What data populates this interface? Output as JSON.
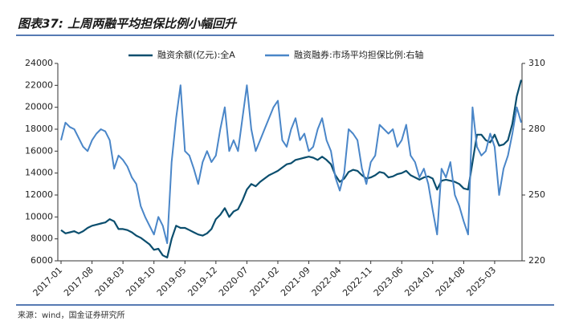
{
  "chart_data": {
    "type": "line",
    "title": "图表37: 上周两融平均担保比例小幅回升",
    "source": "来源：wind，国金证券研究所",
    "categories": [
      "2017-01",
      null,
      null,
      null,
      null,
      null,
      null,
      "2017-08",
      null,
      null,
      null,
      null,
      null,
      null,
      "2018-03",
      null,
      null,
      null,
      null,
      null,
      null,
      "2018-10",
      null,
      null,
      null,
      null,
      null,
      null,
      "2019-05",
      null,
      null,
      null,
      null,
      null,
      null,
      "2019-12",
      null,
      null,
      null,
      null,
      null,
      null,
      "2020-07",
      null,
      null,
      null,
      null,
      null,
      null,
      "2021-02",
      null,
      null,
      null,
      null,
      null,
      null,
      "2021-09",
      null,
      null,
      null,
      null,
      null,
      null,
      "2022-04",
      null,
      null,
      null,
      null,
      null,
      null,
      "2022-11",
      null,
      null,
      null,
      null,
      null,
      null,
      "2023-06",
      null,
      null,
      null,
      null,
      null,
      null,
      "2024-01",
      null,
      null,
      null,
      null,
      null,
      null,
      "2024-08",
      null,
      null,
      null,
      null,
      null,
      null,
      "2025-03",
      null,
      null,
      null,
      null,
      null,
      null
    ],
    "series": [
      {
        "name": "融资余额(亿元):全A",
        "color": "#0b4e6e",
        "axis": "y",
        "values": [
          8800,
          8500,
          8600,
          8700,
          8500,
          8700,
          9000,
          9200,
          9300,
          9400,
          9500,
          9800,
          9600,
          8900,
          8900,
          8800,
          8600,
          8300,
          8100,
          7800,
          7500,
          7000,
          7100,
          6500,
          6300,
          8000,
          9200,
          9000,
          9000,
          8800,
          8600,
          8400,
          8300,
          8500,
          8900,
          9800,
          10200,
          10800,
          10000,
          10500,
          10700,
          11500,
          12500,
          13000,
          12800,
          13200,
          13500,
          13800,
          14000,
          14200,
          14500,
          14800,
          14900,
          15200,
          15300,
          15400,
          15500,
          15400,
          15200,
          15500,
          15200,
          14800,
          13800,
          13200,
          13500,
          14100,
          14300,
          14200,
          13800,
          13500,
          13600,
          13800,
          14100,
          14000,
          13600,
          13700,
          13900,
          14000,
          14200,
          13800,
          13600,
          13400,
          13600,
          13700,
          13500,
          12500,
          13300,
          13400,
          13300,
          13200,
          13000,
          12600,
          12500,
          15000,
          17500,
          17500,
          17000,
          16800,
          17500,
          16500,
          16600,
          17000,
          18500,
          21000,
          22500
        ]
      },
      {
        "name": "融资融券:市场平均担保比例:右轴",
        "color": "#4a86c8",
        "axis": "y2",
        "values": [
          275,
          283,
          281,
          280,
          276,
          272,
          270,
          275,
          278,
          280,
          279,
          275,
          262,
          268,
          266,
          263,
          258,
          255,
          245,
          240,
          236,
          232,
          240,
          236,
          228,
          265,
          285,
          300,
          270,
          268,
          262,
          255,
          265,
          270,
          265,
          268,
          280,
          290,
          270,
          275,
          270,
          285,
          300,
          280,
          270,
          275,
          280,
          285,
          290,
          293,
          275,
          272,
          280,
          285,
          275,
          278,
          270,
          272,
          280,
          285,
          275,
          270,
          258,
          252,
          260,
          280,
          278,
          275,
          262,
          255,
          265,
          268,
          282,
          280,
          278,
          280,
          272,
          275,
          282,
          268,
          265,
          258,
          262,
          255,
          243,
          232,
          262,
          258,
          265,
          250,
          245,
          238,
          232,
          290,
          272,
          268,
          270,
          278,
          272,
          250,
          262,
          268,
          278,
          290,
          283
        ]
      }
    ],
    "ylim": [
      6000,
      24000
    ],
    "yticks": [
      6000,
      8000,
      10000,
      12000,
      14000,
      16000,
      18000,
      20000,
      22000,
      24000
    ],
    "y2lim": [
      220,
      310
    ],
    "y2ticks": [
      220,
      250,
      280,
      310
    ],
    "legend": "top"
  }
}
